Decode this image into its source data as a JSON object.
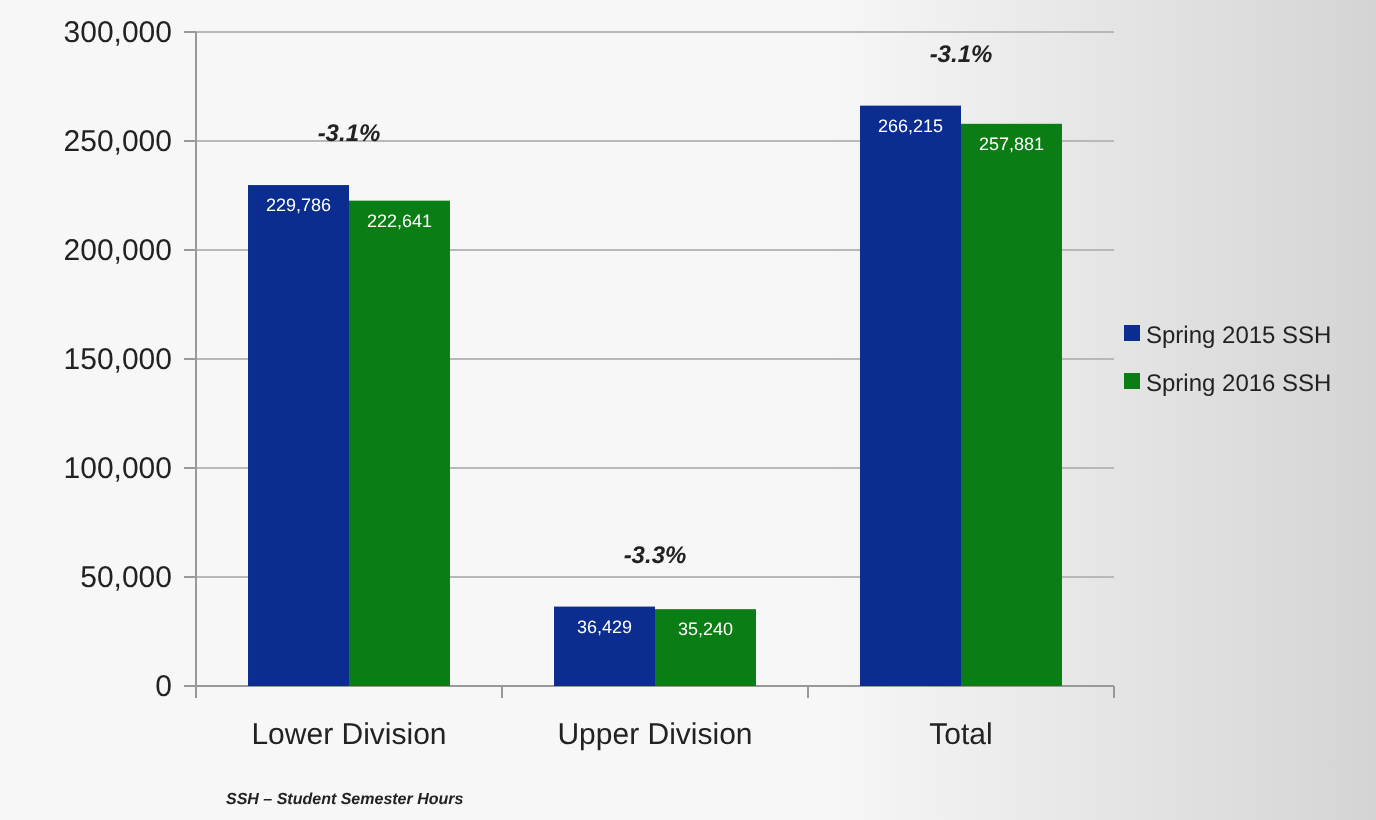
{
  "chart_data": {
    "type": "bar",
    "categories": [
      "Lower Division",
      "Upper Division",
      "Total"
    ],
    "series": [
      {
        "name": "Spring 2015 SSH",
        "color": "#0a2d8f",
        "values": [
          229786,
          36429,
          266215
        ],
        "value_labels": [
          "229,786",
          "36,429",
          "266,215"
        ]
      },
      {
        "name": "Spring 2016 SSH",
        "color": "#0a7d14",
        "values": [
          222641,
          35240,
          257881
        ],
        "value_labels": [
          "222,641",
          "35,240",
          "257,881"
        ]
      }
    ],
    "ylim": [
      0,
      300000
    ],
    "yticks": [
      {
        "value": 0,
        "label": "0"
      },
      {
        "value": 50000,
        "label": "50,000"
      },
      {
        "value": 100000,
        "label": "100,000"
      },
      {
        "value": 150000,
        "label": "150,000"
      },
      {
        "value": 200000,
        "label": "200,000"
      },
      {
        "value": 250000,
        "label": "250,000"
      },
      {
        "value": 300000,
        "label": "300,000"
      }
    ],
    "grid": "y",
    "legend": "right",
    "annotations": [
      "-3.1%",
      "-3.3%",
      "-3.1%",
      "SSH – Student Semester Hours"
    ]
  }
}
